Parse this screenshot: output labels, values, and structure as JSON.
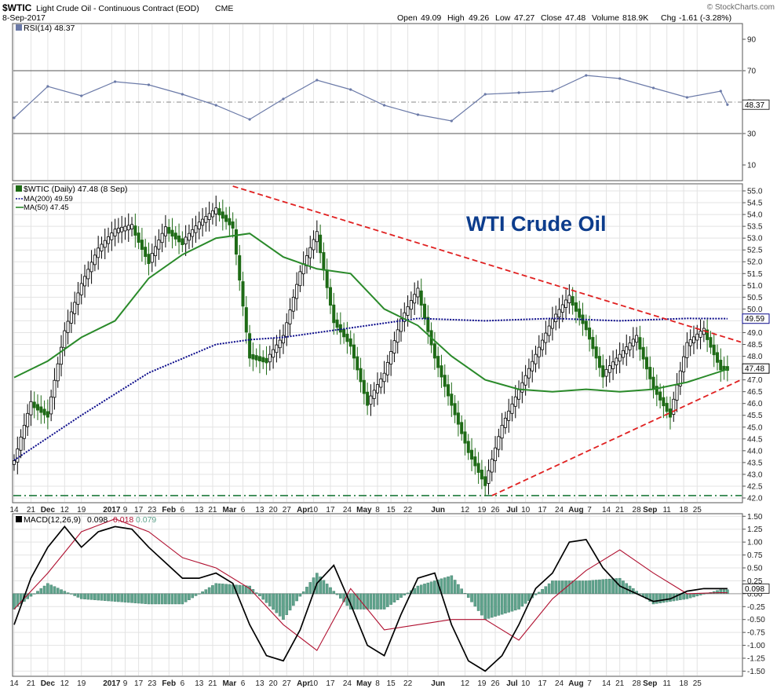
{
  "header": {
    "symbol": "$WTIC",
    "name": "Light Crude Oil - Continuous Contract (EOD)",
    "exchange": "CME",
    "date": "8-Sep-2017",
    "copyright": "© StockCharts.com",
    "ohlc": {
      "open_label": "Open",
      "open": "49.09",
      "high_label": "High",
      "high": "49.26",
      "low_label": "Low",
      "low": "47.27",
      "close_label": "Close",
      "close": "47.48",
      "volume_label": "Volume",
      "volume": "818.9K",
      "chg_label": "Chg",
      "chg": "-1.61 (-3.28%)"
    }
  },
  "chart_data": [
    {
      "type": "line",
      "panel": "rsi",
      "legend": "RSI(14) 48.37",
      "last_value_label": "48.37",
      "ylim": [
        0,
        100
      ],
      "yticks": [
        10,
        30,
        50,
        70,
        90
      ],
      "reference_lines": [
        30,
        50,
        70
      ],
      "series": [
        {
          "name": "RSI(14)",
          "x": [
            0,
            10,
            20,
            30,
            40,
            50,
            60,
            70,
            80,
            90,
            100,
            110,
            120,
            130,
            140,
            150,
            160,
            170,
            180,
            190,
            200,
            210,
            212
          ],
          "values": [
            40,
            60,
            54,
            63,
            61,
            55,
            48,
            39,
            52,
            64,
            58,
            48,
            42,
            38,
            55,
            56,
            57,
            67,
            65,
            59,
            53,
            57,
            48.37
          ]
        }
      ]
    },
    {
      "type": "line",
      "panel": "price",
      "title": "WTI Crude Oil",
      "legend": [
        "$WTIC (Daily) 47.48 (8 Sep)",
        "MA(200) 49.59",
        "MA(50) 47.45"
      ],
      "last_value_labels": [
        "49.59",
        "47.48"
      ],
      "ylim": [
        41.8,
        55.3
      ],
      "yticks": [
        42.0,
        42.5,
        43.0,
        43.5,
        44.0,
        44.5,
        45.0,
        45.5,
        46.0,
        46.5,
        47.0,
        47.5,
        48.0,
        48.5,
        49.0,
        49.5,
        50.0,
        50.5,
        51.0,
        51.5,
        52.0,
        52.5,
        53.0,
        53.5,
        54.0,
        54.5,
        55.0
      ],
      "series": [
        {
          "name": "$WTIC",
          "x": [
            0,
            5,
            10,
            15,
            20,
            25,
            30,
            35,
            40,
            45,
            50,
            55,
            60,
            65,
            70,
            75,
            80,
            85,
            90,
            95,
            100,
            105,
            110,
            115,
            120,
            125,
            130,
            135,
            140,
            145,
            150,
            155,
            160,
            165,
            170,
            175,
            180,
            185,
            190,
            195,
            200,
            205,
            210,
            212
          ],
          "values": [
            43.5,
            46.0,
            45.5,
            49.0,
            51.0,
            52.5,
            53.3,
            53.5,
            52.0,
            53.4,
            52.8,
            53.6,
            54.2,
            53.5,
            48.0,
            47.8,
            48.8,
            51.5,
            53.2,
            49.5,
            48.5,
            46.0,
            47.2,
            49.5,
            50.8,
            48.0,
            46.0,
            44.0,
            42.6,
            45.0,
            46.5,
            48.0,
            49.5,
            50.5,
            49.2,
            47.2,
            48.0,
            48.8,
            46.7,
            45.5,
            48.5,
            49.1,
            47.5,
            47.48
          ]
        },
        {
          "name": "MA(200)",
          "x": [
            0,
            20,
            40,
            60,
            70,
            80,
            100,
            120,
            140,
            160,
            180,
            200,
            212
          ],
          "values": [
            43.6,
            45.5,
            47.3,
            48.5,
            48.7,
            48.8,
            49.2,
            49.6,
            49.5,
            49.6,
            49.5,
            49.6,
            49.59
          ]
        },
        {
          "name": "MA(50)",
          "x": [
            0,
            10,
            20,
            30,
            40,
            50,
            60,
            70,
            80,
            90,
            100,
            110,
            120,
            130,
            140,
            150,
            160,
            170,
            180,
            190,
            200,
            212
          ],
          "values": [
            47.1,
            47.8,
            48.8,
            49.5,
            51.3,
            52.3,
            53.0,
            53.2,
            52.2,
            51.7,
            51.5,
            50.0,
            49.3,
            48.0,
            47.0,
            46.6,
            46.5,
            46.6,
            46.5,
            46.6,
            46.9,
            47.45
          ]
        }
      ],
      "trendlines": [
        {
          "name": "upper",
          "x": [
            65,
            216
          ],
          "values": [
            55.2,
            48.6
          ]
        },
        {
          "name": "lower",
          "x": [
            142,
            216
          ],
          "values": [
            42.1,
            47.0
          ]
        }
      ],
      "horizontal_levels": [
        42.1
      ]
    },
    {
      "type": "line",
      "panel": "macd",
      "legend": [
        "MACD(12,26,9)",
        "0.098",
        "0.018",
        "0.079"
      ],
      "last_value_label": "0.098",
      "ylim": [
        -1.6,
        1.55
      ],
      "yticks": [
        -1.5,
        -1.25,
        -1.0,
        -0.75,
        -0.5,
        -0.25,
        0.0,
        0.25,
        0.5,
        0.75,
        1.0,
        1.25,
        1.5
      ],
      "series": [
        {
          "name": "MACD",
          "x": [
            0,
            5,
            10,
            15,
            20,
            25,
            30,
            35,
            40,
            45,
            50,
            55,
            60,
            65,
            70,
            75,
            80,
            85,
            90,
            95,
            100,
            105,
            110,
            115,
            120,
            125,
            130,
            135,
            140,
            145,
            150,
            155,
            160,
            165,
            170,
            175,
            180,
            185,
            190,
            195,
            200,
            205,
            210,
            212
          ],
          "values": [
            -0.6,
            0.3,
            0.9,
            1.3,
            0.9,
            1.2,
            1.3,
            1.25,
            0.9,
            0.6,
            0.3,
            0.3,
            0.4,
            0.2,
            -0.6,
            -1.2,
            -1.3,
            -0.7,
            0.2,
            0.55,
            -0.2,
            -1.0,
            -1.2,
            -0.4,
            0.3,
            0.4,
            -0.6,
            -1.3,
            -1.5,
            -1.2,
            -0.6,
            0.1,
            0.4,
            1.0,
            1.05,
            0.5,
            0.15,
            0.0,
            -0.15,
            -0.1,
            0.05,
            0.1,
            0.098,
            0.098
          ]
        },
        {
          "name": "Signal",
          "x": [
            0,
            10,
            20,
            30,
            40,
            50,
            60,
            70,
            80,
            90,
            100,
            110,
            120,
            130,
            140,
            150,
            160,
            170,
            180,
            190,
            200,
            210,
            212
          ],
          "values": [
            -0.3,
            0.4,
            1.2,
            1.45,
            1.2,
            0.7,
            0.5,
            0.1,
            -0.6,
            -1.1,
            0.1,
            -0.7,
            -0.6,
            -0.5,
            -0.5,
            -0.9,
            -0.1,
            0.45,
            0.85,
            0.4,
            0.0,
            0.02,
            0.018
          ]
        },
        {
          "name": "Histogram",
          "x": [
            0,
            10,
            20,
            30,
            40,
            50,
            60,
            70,
            80,
            90,
            100,
            110,
            120,
            130,
            140,
            150,
            160,
            170,
            180,
            190,
            200,
            210,
            212
          ],
          "values": [
            -0.3,
            0.2,
            -0.1,
            -0.15,
            -0.2,
            -0.2,
            0.2,
            0.15,
            -0.5,
            0.4,
            -0.3,
            -0.3,
            0.15,
            0.35,
            -0.5,
            -0.3,
            0.25,
            0.25,
            0.3,
            -0.2,
            -0.1,
            0.08,
            0.079
          ]
        }
      ]
    }
  ],
  "x_axis": {
    "ticks": [
      {
        "label": "14",
        "x": 0
      },
      {
        "label": "21",
        "x": 5
      },
      {
        "label": "Dec",
        "x": 10
      },
      {
        "label": "12",
        "x": 15
      },
      {
        "label": "19",
        "x": 20
      },
      {
        "label": "2017",
        "x": 29
      },
      {
        "label": "9",
        "x": 33
      },
      {
        "label": "17",
        "x": 37
      },
      {
        "label": "23",
        "x": 41
      },
      {
        "label": "Feb",
        "x": 46
      },
      {
        "label": "6",
        "x": 50
      },
      {
        "label": "13",
        "x": 55
      },
      {
        "label": "21",
        "x": 59
      },
      {
        "label": "Mar",
        "x": 64
      },
      {
        "label": "6",
        "x": 68
      },
      {
        "label": "13",
        "x": 73
      },
      {
        "label": "20",
        "x": 77
      },
      {
        "label": "27",
        "x": 81
      },
      {
        "label": "Apr",
        "x": 86
      },
      {
        "label": "10",
        "x": 89
      },
      {
        "label": "17",
        "x": 94
      },
      {
        "label": "24",
        "x": 99
      },
      {
        "label": "May",
        "x": 104
      },
      {
        "label": "8",
        "x": 108
      },
      {
        "label": "15",
        "x": 112
      },
      {
        "label": "22",
        "x": 117
      },
      {
        "label": "Jun",
        "x": 126
      },
      {
        "label": "12",
        "x": 134
      },
      {
        "label": "19",
        "x": 139
      },
      {
        "label": "26",
        "x": 143
      },
      {
        "label": "Jul",
        "x": 148
      },
      {
        "label": "10",
        "x": 152
      },
      {
        "label": "17",
        "x": 157
      },
      {
        "label": "24",
        "x": 162
      },
      {
        "label": "Aug",
        "x": 167
      },
      {
        "label": "7",
        "x": 171
      },
      {
        "label": "14",
        "x": 176
      },
      {
        "label": "21",
        "x": 180
      },
      {
        "label": "28",
        "x": 185
      },
      {
        "label": "Sep",
        "x": 189
      },
      {
        "label": "11",
        "x": 194
      },
      {
        "label": "18",
        "x": 199
      },
      {
        "label": "25",
        "x": 203
      }
    ]
  },
  "colors": {
    "price_up": "#000000",
    "price_down": "#1e6b16",
    "ma50": "#2a8a2a",
    "ma200": "#0a0a8a",
    "trendline": "#e02020",
    "rsi": "#6b7aa8",
    "macd": "#000000",
    "signal": "#b01030",
    "histogram": "#5fa38c",
    "title": "#0c3c8c",
    "grid": "#e3e3e3",
    "support": "#1f7a3c"
  }
}
